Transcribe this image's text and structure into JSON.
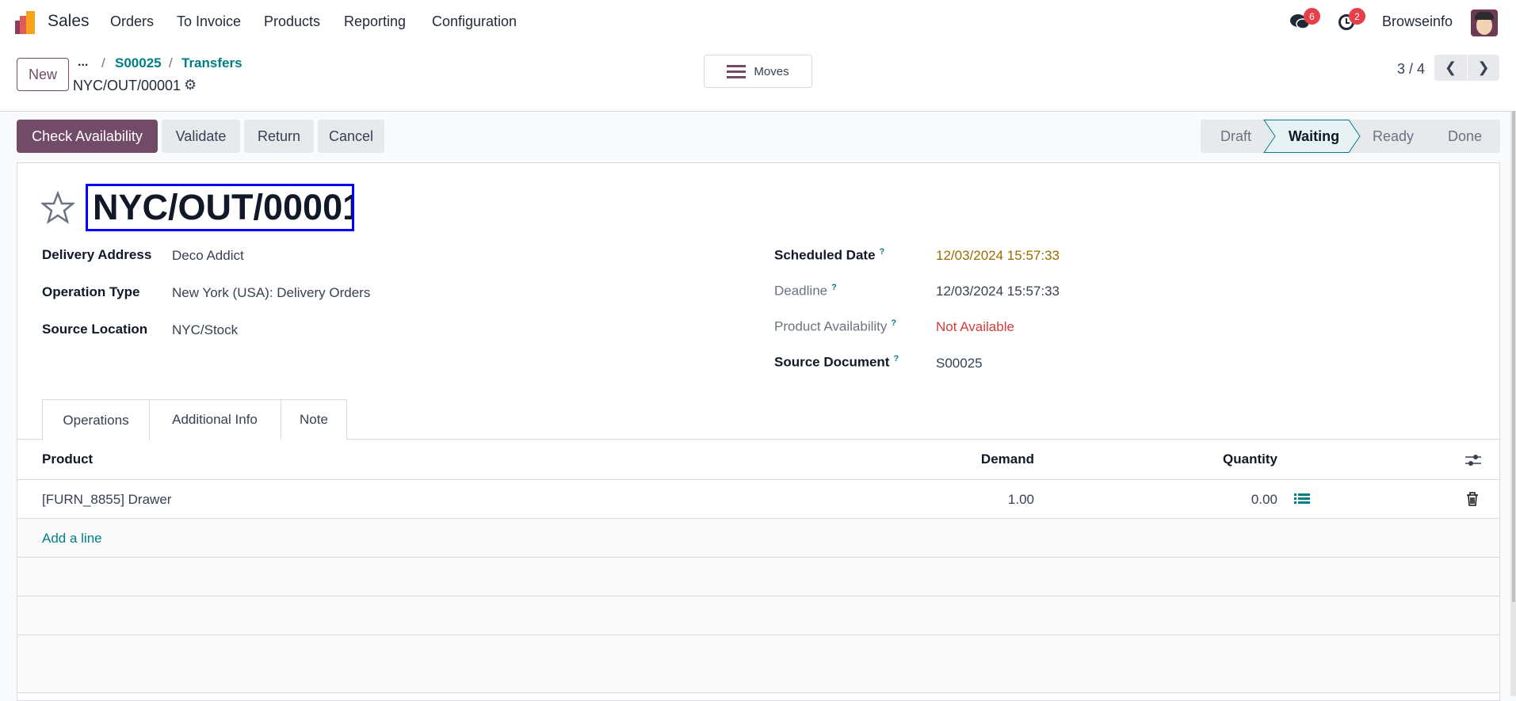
{
  "nav": {
    "app": "Sales",
    "menu": [
      "Orders",
      "To Invoice",
      "Products",
      "Reporting",
      "Configuration"
    ],
    "messages_count": "6",
    "activities_count": "2",
    "user": "Browseinfo"
  },
  "control": {
    "new_label": "New",
    "breadcrumb_more": "...",
    "breadcrumbs": [
      "S00025",
      "Transfers"
    ],
    "record": "NYC/OUT/00001",
    "moves_label": "Moves",
    "pager": "3 / 4"
  },
  "actions": [
    "Check Availability",
    "Validate",
    "Return",
    "Cancel"
  ],
  "statusbar": {
    "stages": [
      "Draft",
      "Waiting",
      "Ready",
      "Done"
    ],
    "active": "Waiting"
  },
  "form": {
    "title": "NYC/OUT/00001",
    "left": [
      {
        "label": "Delivery Address",
        "value": "Deco Addict"
      },
      {
        "label": "Operation Type",
        "value": "New York (USA): Delivery Orders"
      },
      {
        "label": "Source Location",
        "value": "NYC/Stock"
      }
    ],
    "right": [
      {
        "label": "Scheduled Date",
        "value": "12/03/2024 15:57:33"
      },
      {
        "label": "Deadline",
        "value": "12/03/2024 15:57:33"
      },
      {
        "label": "Product Availability",
        "value": "Not Available"
      },
      {
        "label": "Source Document",
        "value": "S00025"
      }
    ],
    "help_mark": "?"
  },
  "tabs": [
    "Operations",
    "Additional Info",
    "Note"
  ],
  "table": {
    "columns": [
      "Product",
      "Demand",
      "Quantity"
    ],
    "rows": [
      {
        "product": "[FURN_8855] Drawer",
        "demand": "1.00",
        "quantity": "0.00"
      }
    ],
    "add_line": "Add a line"
  },
  "colors": {
    "brand": "#714B67",
    "accent": "#017e84",
    "warning": "#9a6b00",
    "danger": "#d23f3a",
    "highlight": "#0000ff"
  }
}
